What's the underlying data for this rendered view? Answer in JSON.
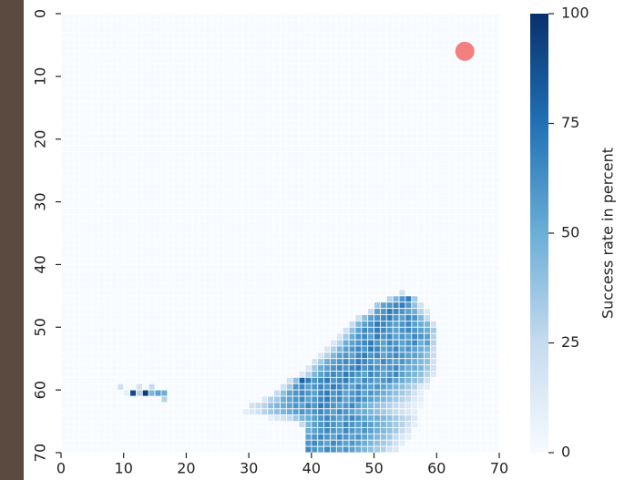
{
  "chart_data": {
    "type": "heatmap",
    "colorbar_label": "Success rate in percent",
    "xlim": [
      0,
      70
    ],
    "ylim": [
      0,
      70
    ],
    "y_inverted": true,
    "xticks": [
      0,
      10,
      20,
      30,
      40,
      50,
      60,
      70
    ],
    "yticks": [
      0,
      10,
      20,
      30,
      40,
      50,
      60,
      70
    ],
    "clim": [
      0,
      100
    ],
    "cticks": [
      0,
      25,
      50,
      75,
      100
    ],
    "colormap": [
      "#f7fbff",
      "#c6dbef",
      "#6baed6",
      "#2171b5",
      "#08306b"
    ],
    "target": {
      "x": 64.5,
      "y": 6,
      "color": "#f47f7f"
    },
    "rows": [
      {
        "y": 44,
        "start": 54,
        "values": [
          20
        ]
      },
      {
        "y": 45,
        "start": 52,
        "values": [
          30,
          45,
          60,
          70,
          35
        ]
      },
      {
        "y": 46,
        "start": 50,
        "values": [
          35,
          55,
          60,
          65,
          70,
          60,
          40,
          20
        ]
      },
      {
        "y": 47,
        "start": 49,
        "values": [
          25,
          55,
          60,
          70,
          65,
          60,
          55,
          50,
          30,
          15
        ]
      },
      {
        "y": 48,
        "start": 47,
        "values": [
          20,
          40,
          55,
          60,
          65,
          70,
          60,
          55,
          65,
          60,
          45,
          25
        ]
      },
      {
        "y": 49,
        "start": 46,
        "values": [
          25,
          45,
          55,
          60,
          70,
          65,
          60,
          55,
          60,
          65,
          55,
          50,
          45,
          20
        ]
      },
      {
        "y": 50,
        "start": 45,
        "values": [
          20,
          40,
          55,
          65,
          60,
          70,
          65,
          60,
          55,
          60,
          65,
          60,
          55,
          50,
          35
        ]
      },
      {
        "y": 51,
        "start": 44,
        "values": [
          15,
          35,
          50,
          60,
          65,
          55,
          70,
          60,
          65,
          55,
          60,
          55,
          65,
          60,
          55,
          30
        ]
      },
      {
        "y": 52,
        "start": 43,
        "values": [
          15,
          30,
          50,
          55,
          60,
          65,
          70,
          60,
          55,
          65,
          60,
          55,
          60,
          65,
          50,
          55,
          30
        ]
      },
      {
        "y": 53,
        "start": 42,
        "values": [
          15,
          30,
          45,
          55,
          60,
          65,
          60,
          70,
          65,
          55,
          60,
          65,
          55,
          60,
          55,
          50,
          45,
          25
        ]
      },
      {
        "y": 54,
        "start": 41,
        "values": [
          15,
          30,
          45,
          55,
          60,
          55,
          65,
          70,
          60,
          65,
          55,
          60,
          65,
          60,
          55,
          55,
          50,
          40,
          25
        ]
      },
      {
        "y": 55,
        "start": 40,
        "values": [
          20,
          35,
          50,
          55,
          60,
          65,
          60,
          70,
          65,
          60,
          55,
          65,
          60,
          55,
          60,
          55,
          50,
          45,
          40,
          20
        ]
      },
      {
        "y": 56,
        "start": 39,
        "values": [
          15,
          35,
          50,
          55,
          60,
          65,
          60,
          65,
          70,
          60,
          65,
          60,
          55,
          60,
          65,
          55,
          50,
          50,
          45,
          35,
          20
        ]
      },
      {
        "y": 57,
        "start": 38,
        "values": [
          15,
          30,
          45,
          55,
          60,
          65,
          60,
          70,
          65,
          60,
          55,
          65,
          60,
          55,
          60,
          65,
          55,
          50,
          45,
          40,
          30,
          15
        ]
      },
      {
        "y": 58,
        "start": 36,
        "values": [
          20,
          40,
          80,
          70,
          60,
          65,
          70,
          60,
          65,
          70,
          60,
          55,
          65,
          60,
          55,
          60,
          65,
          55,
          50,
          45,
          40,
          35,
          20
        ]
      },
      {
        "y": 59,
        "start": 35,
        "values": [
          20,
          35,
          60,
          65,
          55,
          60,
          65,
          60,
          70,
          65,
          60,
          55,
          65,
          60,
          55,
          60,
          55,
          50,
          45,
          40,
          35,
          30,
          15,
          10
        ]
      },
      {
        "y": 60,
        "start": 34,
        "values": [
          25,
          40,
          55,
          60,
          65,
          60,
          55,
          65,
          70,
          60,
          65,
          55,
          60,
          65,
          55,
          60,
          55,
          50,
          45,
          40,
          35,
          30,
          20,
          10
        ]
      },
      {
        "y": 61,
        "start": 32,
        "values": [
          15,
          30,
          35,
          50,
          55,
          60,
          65,
          55,
          60,
          65,
          70,
          60,
          65,
          55,
          60,
          65,
          60,
          55,
          50,
          45,
          40,
          35,
          30,
          25,
          15,
          10
        ]
      },
      {
        "y": 62,
        "start": 30,
        "values": [
          20,
          25,
          30,
          40,
          45,
          50,
          55,
          60,
          55,
          65,
          60,
          70,
          65,
          60,
          55,
          60,
          65,
          55,
          50,
          45,
          40,
          35,
          30,
          25,
          20,
          15,
          10,
          5
        ]
      },
      {
        "y": 63,
        "start": 29,
        "values": [
          10,
          15,
          20,
          30,
          35,
          40,
          45,
          50,
          55,
          60,
          55,
          60,
          65,
          60,
          55,
          65,
          60,
          55,
          50,
          50,
          45,
          40,
          35,
          30,
          25,
          20,
          15,
          10
        ]
      },
      {
        "y": 64,
        "start": 33,
        "values": [
          10,
          15,
          20,
          25,
          35,
          45,
          50,
          55,
          60,
          65,
          60,
          55,
          60,
          65,
          60,
          55,
          50,
          50,
          45,
          40,
          35,
          30,
          25,
          15
        ]
      },
      {
        "y": 65,
        "start": 38,
        "values": [
          25,
          45,
          55,
          60,
          65,
          60,
          55,
          65,
          60,
          55,
          60,
          55,
          50,
          45,
          40,
          35,
          30,
          20,
          10
        ]
      },
      {
        "y": 66,
        "start": 39,
        "values": [
          50,
          55,
          60,
          65,
          60,
          55,
          65,
          60,
          55,
          60,
          55,
          50,
          45,
          40,
          35,
          25,
          15
        ]
      },
      {
        "y": 67,
        "start": 39,
        "values": [
          55,
          60,
          65,
          60,
          55,
          65,
          60,
          55,
          60,
          55,
          50,
          45,
          40,
          35,
          25,
          15,
          10
        ]
      },
      {
        "y": 68,
        "start": 39,
        "values": [
          60,
          65,
          60,
          55,
          65,
          60,
          55,
          60,
          55,
          50,
          45,
          40,
          35,
          30,
          20,
          10
        ]
      },
      {
        "y": 69,
        "start": 39,
        "values": [
          65,
          60,
          55,
          65,
          60,
          55,
          60,
          55,
          50,
          45,
          40,
          35,
          30,
          20,
          15
        ]
      },
      {
        "y": 59,
        "start": 9,
        "values": [
          20
        ]
      },
      {
        "y": 59,
        "start": 12,
        "values": [
          20
        ]
      },
      {
        "y": 59,
        "start": 14,
        "values": [
          25
        ]
      },
      {
        "y": 60,
        "start": 10,
        "values": [
          10,
          90,
          30,
          95,
          45,
          55,
          50
        ]
      },
      {
        "y": 61,
        "start": 16,
        "values": [
          30
        ]
      }
    ]
  }
}
